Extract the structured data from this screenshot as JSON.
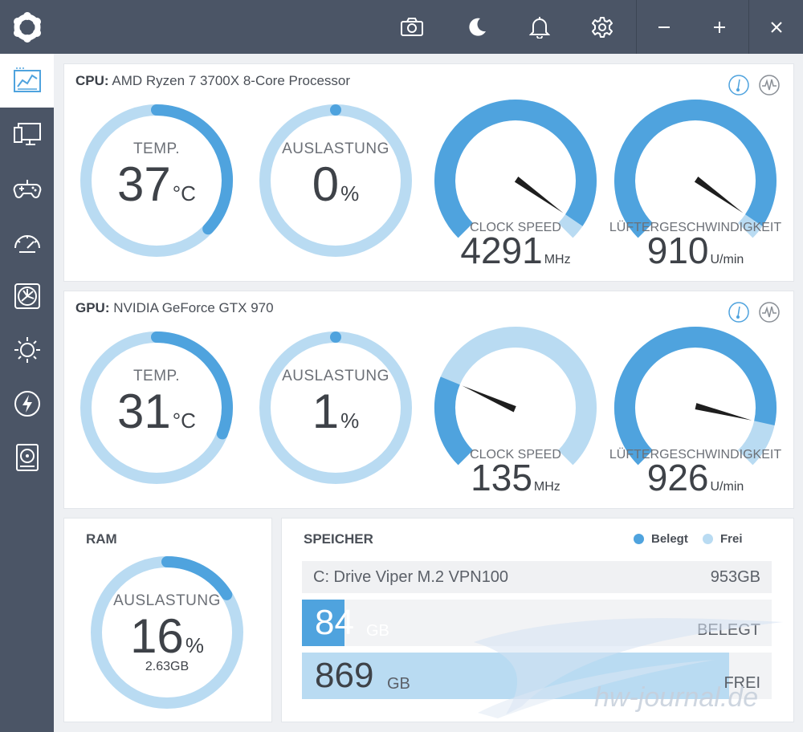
{
  "colors": {
    "accent": "#4fa3de",
    "track": "#b9dbf2",
    "sidebar": "#4b5566"
  },
  "topbar": {
    "icons": [
      "app-logo-icon",
      "camera-icon",
      "moon-icon",
      "bell-icon",
      "gear-icon",
      "minimize-icon",
      "maximize-icon",
      "close-icon"
    ]
  },
  "sidebar": {
    "items": [
      {
        "icon": "dashboard-icon"
      },
      {
        "icon": "monitor-icon"
      },
      {
        "icon": "gamepad-icon"
      },
      {
        "icon": "speedometer-icon"
      },
      {
        "icon": "fan-icon"
      },
      {
        "icon": "sun-icon"
      },
      {
        "icon": "lightning-icon"
      },
      {
        "icon": "storage-icon"
      }
    ]
  },
  "cpu": {
    "title_bold": "CPU:",
    "title": "AMD Ryzen 7 3700X 8-Core Processor",
    "temp": {
      "label": "TEMP.",
      "value": "37",
      "unit": "°C",
      "level": 0.37
    },
    "load": {
      "label": "AUSLASTUNG",
      "value": "0",
      "unit": "%",
      "level": 0.0
    },
    "clock": {
      "label": "CLOCK SPEED",
      "value": "4291",
      "unit": "MHz",
      "level": 0.96
    },
    "fan": {
      "label": "LÜFTERGESCHWINDIGKEIT",
      "value": "910",
      "unit": "U/min",
      "level": 0.96
    }
  },
  "gpu": {
    "title_bold": "GPU:",
    "title": "NVIDIA GeForce GTX 970",
    "temp": {
      "label": "TEMP.",
      "value": "31",
      "unit": "°C",
      "level": 0.31
    },
    "load": {
      "label": "AUSLASTUNG",
      "value": "1",
      "unit": "%",
      "level": 0.01
    },
    "clock": {
      "label": "CLOCK SPEED",
      "value": "135",
      "unit": "MHz",
      "level": 0.25
    },
    "fan": {
      "label": "LÜFTERGESCHWINDIGKEIT",
      "value": "926",
      "unit": "U/min",
      "level": 0.88
    }
  },
  "ram": {
    "title": "RAM",
    "label": "AUSLASTUNG",
    "value": "16",
    "unit": "%",
    "sub": "2.63GB",
    "level": 0.16
  },
  "storage": {
    "title": "SPEICHER",
    "legend_used": "Belegt",
    "legend_free": "Frei",
    "drive_name": "C: Drive Viper M.2 VPN100",
    "drive_size": "953GB",
    "used_value": "84",
    "used_unit": "GB",
    "used_label": "BELEGT",
    "free_value": "869",
    "free_unit": "GB",
    "free_label": "FREI",
    "used_fraction": 0.09,
    "free_fraction": 0.91
  },
  "watermark": "hw-journal.de"
}
